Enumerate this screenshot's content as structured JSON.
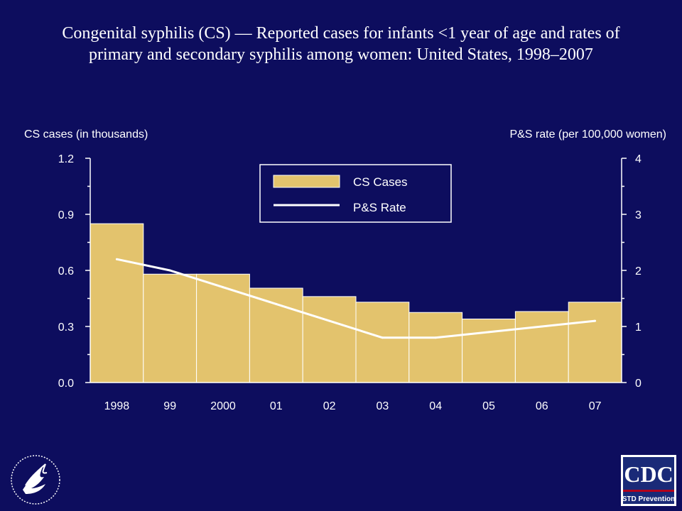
{
  "title_line1": "Congenital syphilis (CS) — Reported cases for infants <1 year of age and rates of",
  "title_line2": "primary and secondary syphilis among women: United States, 1998–2007",
  "colors": {
    "background": "#0d0d5e",
    "bars": "#e3c36d",
    "line": "#ffffff",
    "axis": "#ffffff"
  },
  "chart_data": {
    "type": "bar",
    "title": "Congenital syphilis (CS) — Reported cases for infants <1 year of age and rates of primary and secondary syphilis among women: United States, 1998–2007",
    "ylabel": "CS cases (in thousands)",
    "y2label": "P&S rate (per 100,000 women)",
    "categories": [
      "1998",
      "99",
      "2000",
      "01",
      "02",
      "03",
      "04",
      "05",
      "06",
      "07"
    ],
    "ylim": [
      0,
      1.2
    ],
    "yticks": [
      "0.0",
      "0.3",
      "0.6",
      "0.9",
      "1.2"
    ],
    "y2lim": [
      0,
      4
    ],
    "y2ticks": [
      "0",
      "1",
      "2",
      "3",
      "4"
    ],
    "legend_position": "top-center",
    "grid": false,
    "series": [
      {
        "name": "CS Cases",
        "kind": "bar",
        "axis": "left",
        "values": [
          0.85,
          0.58,
          0.58,
          0.505,
          0.46,
          0.43,
          0.375,
          0.34,
          0.38,
          0.43
        ]
      },
      {
        "name": "P&S Rate",
        "kind": "line",
        "axis": "right",
        "values": [
          2.2,
          2.0,
          1.7,
          1.4,
          1.1,
          0.8,
          0.8,
          0.9,
          1.0,
          1.1
        ]
      }
    ]
  },
  "logos": {
    "left": "hhs-eagle-seal",
    "right_top": "CDC",
    "right_bottom": "STD Prevention"
  }
}
